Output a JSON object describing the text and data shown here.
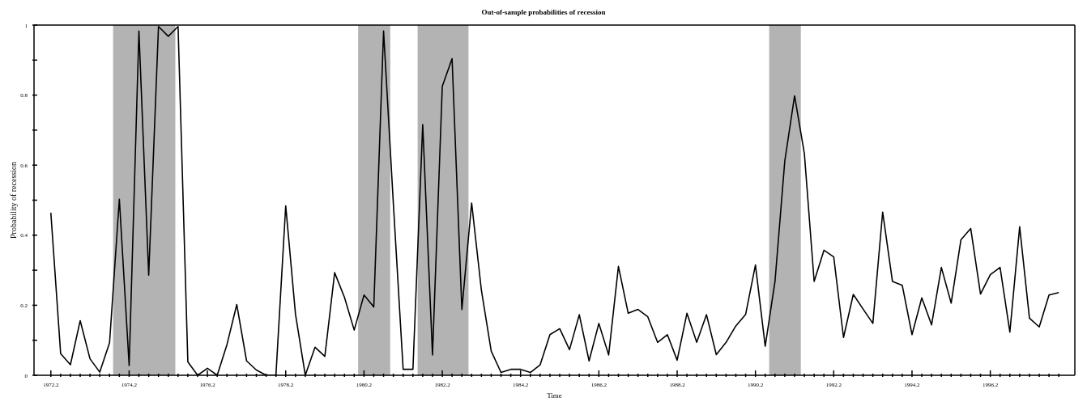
{
  "chart_data": {
    "type": "line",
    "title": "Out-of-sample probabilities of recession",
    "xlabel": "Time",
    "ylabel": "Probability of recession",
    "x": [
      1972.25,
      1972.5,
      1972.75,
      1973,
      1973.25,
      1973.5,
      1973.75,
      1974,
      1974.25,
      1974.5,
      1974.75,
      1975,
      1975.25,
      1975.5,
      1975.75,
      1976,
      1976.25,
      1976.5,
      1976.75,
      1977,
      1977.25,
      1977.5,
      1977.75,
      1978,
      1978.25,
      1978.5,
      1978.75,
      1979,
      1979.25,
      1979.5,
      1979.75,
      1980,
      1980.25,
      1980.5,
      1980.75,
      1981,
      1981.25,
      1981.5,
      1981.75,
      1982,
      1982.25,
      1982.5,
      1982.75,
      1983,
      1983.25,
      1983.5,
      1983.75,
      1984,
      1984.25,
      1984.5,
      1984.75,
      1985,
      1985.25,
      1985.5,
      1985.75,
      1986,
      1986.25,
      1986.5,
      1986.75,
      1987,
      1987.25,
      1987.5,
      1987.75,
      1988,
      1988.25,
      1988.5,
      1988.75,
      1989,
      1989.25,
      1989.5,
      1989.75,
      1990,
      1990.25,
      1990.5,
      1990.75,
      1991,
      1991.25,
      1991.5,
      1991.75,
      1992,
      1992.25,
      1992.5,
      1992.75,
      1993,
      1993.25,
      1993.5,
      1993.75,
      1994,
      1994.25,
      1994.5,
      1994.75,
      1995,
      1995.25,
      1995.5,
      1995.75,
      1996,
      1996.25,
      1996.5,
      1996.75,
      1997,
      1997.25,
      1997.5,
      1997.75,
      1998
    ],
    "values": [
      0.464,
      0.062,
      0.03,
      0.156,
      0.047,
      0.009,
      0.093,
      0.503,
      0.028,
      0.983,
      0.286,
      0.996,
      0.968,
      0.996,
      0.038,
      0,
      0.02,
      0,
      0.088,
      0.202,
      0.041,
      0.015,
      0,
      0,
      0.484,
      0.174,
      0,
      0.08,
      0.054,
      0.293,
      0.223,
      0.129,
      0.229,
      0.195,
      0.983,
      0.49,
      0.017,
      0.017,
      0.716,
      0.058,
      0.825,
      0.904,
      0.188,
      0.492,
      0.242,
      0.069,
      0.008,
      0.017,
      0.017,
      0.008,
      0.03,
      0.116,
      0.133,
      0.073,
      0.173,
      0.041,
      0.148,
      0.058,
      0.311,
      0.177,
      0.188,
      0.167,
      0.094,
      0.116,
      0.043,
      0.177,
      0.094,
      0.173,
      0.059,
      0.094,
      0.141,
      0.174,
      0.315,
      0.083,
      0.268,
      0.612,
      0.798,
      0.633,
      0.268,
      0.357,
      0.338,
      0.108,
      0.231,
      0.189,
      0.148,
      0.466,
      0.268,
      0.257,
      0.116,
      0.221,
      0.144,
      0.308,
      0.206,
      0.387,
      0.419,
      0.232,
      0.287,
      0.308,
      0.123,
      0.424,
      0.163,
      0.138,
      0.229,
      0.236
    ],
    "color": "#000000",
    "xlim": [
      1971.82,
      1998.41
    ],
    "xticks": [
      {
        "value": 1972.25,
        "label": "1972.2"
      },
      {
        "value": 1972.5,
        "label": null
      },
      {
        "value": 1972.75,
        "label": null
      },
      {
        "value": 1973,
        "label": null
      },
      {
        "value": 1973.25,
        "label": null
      },
      {
        "value": 1973.5,
        "label": null
      },
      {
        "value": 1973.75,
        "label": null
      },
      {
        "value": 1974,
        "label": null
      },
      {
        "value": 1974.25,
        "label": "1974.2"
      },
      {
        "value": 1974.5,
        "label": null
      },
      {
        "value": 1974.75,
        "label": null
      },
      {
        "value": 1975,
        "label": null
      },
      {
        "value": 1975.25,
        "label": null
      },
      {
        "value": 1975.5,
        "label": null
      },
      {
        "value": 1975.75,
        "label": null
      },
      {
        "value": 1976,
        "label": null
      },
      {
        "value": 1976.25,
        "label": "1976.2"
      },
      {
        "value": 1976.5,
        "label": null
      },
      {
        "value": 1976.75,
        "label": null
      },
      {
        "value": 1977,
        "label": null
      },
      {
        "value": 1977.25,
        "label": null
      },
      {
        "value": 1977.5,
        "label": null
      },
      {
        "value": 1977.75,
        "label": null
      },
      {
        "value": 1978,
        "label": null
      },
      {
        "value": 1978.25,
        "label": "1978.2"
      },
      {
        "value": 1978.5,
        "label": null
      },
      {
        "value": 1978.75,
        "label": null
      },
      {
        "value": 1979,
        "label": null
      },
      {
        "value": 1979.25,
        "label": null
      },
      {
        "value": 1979.5,
        "label": null
      },
      {
        "value": 1979.75,
        "label": null
      },
      {
        "value": 1980,
        "label": null
      },
      {
        "value": 1980.25,
        "label": "1980.2"
      },
      {
        "value": 1980.5,
        "label": null
      },
      {
        "value": 1980.75,
        "label": null
      },
      {
        "value": 1981,
        "label": null
      },
      {
        "value": 1981.25,
        "label": null
      },
      {
        "value": 1981.5,
        "label": null
      },
      {
        "value": 1981.75,
        "label": null
      },
      {
        "value": 1982,
        "label": null
      },
      {
        "value": 1982.25,
        "label": "1982.2"
      },
      {
        "value": 1982.5,
        "label": null
      },
      {
        "value": 1982.75,
        "label": null
      },
      {
        "value": 1983,
        "label": null
      },
      {
        "value": 1983.25,
        "label": null
      },
      {
        "value": 1983.5,
        "label": null
      },
      {
        "value": 1983.75,
        "label": null
      },
      {
        "value": 1984,
        "label": null
      },
      {
        "value": 1984.25,
        "label": "1984.2"
      },
      {
        "value": 1984.5,
        "label": null
      },
      {
        "value": 1984.75,
        "label": null
      },
      {
        "value": 1985,
        "label": null
      },
      {
        "value": 1985.25,
        "label": null
      },
      {
        "value": 1985.5,
        "label": null
      },
      {
        "value": 1985.75,
        "label": null
      },
      {
        "value": 1986,
        "label": null
      },
      {
        "value": 1986.25,
        "label": "1986.2"
      },
      {
        "value": 1986.5,
        "label": null
      },
      {
        "value": 1986.75,
        "label": null
      },
      {
        "value": 1987,
        "label": null
      },
      {
        "value": 1987.25,
        "label": null
      },
      {
        "value": 1987.5,
        "label": null
      },
      {
        "value": 1987.75,
        "label": null
      },
      {
        "value": 1988,
        "label": null
      },
      {
        "value": 1988.25,
        "label": "1988.2"
      },
      {
        "value": 1988.5,
        "label": null
      },
      {
        "value": 1988.75,
        "label": null
      },
      {
        "value": 1989,
        "label": null
      },
      {
        "value": 1989.25,
        "label": null
      },
      {
        "value": 1989.5,
        "label": null
      },
      {
        "value": 1989.75,
        "label": null
      },
      {
        "value": 1990,
        "label": null
      },
      {
        "value": 1990.25,
        "label": "1990.2"
      },
      {
        "value": 1990.5,
        "label": null
      },
      {
        "value": 1990.75,
        "label": null
      },
      {
        "value": 1991,
        "label": null
      },
      {
        "value": 1991.25,
        "label": null
      },
      {
        "value": 1991.5,
        "label": null
      },
      {
        "value": 1991.75,
        "label": null
      },
      {
        "value": 1992,
        "label": null
      },
      {
        "value": 1992.25,
        "label": "1992.2"
      },
      {
        "value": 1992.5,
        "label": null
      },
      {
        "value": 1992.75,
        "label": null
      },
      {
        "value": 1993,
        "label": null
      },
      {
        "value": 1993.25,
        "label": null
      },
      {
        "value": 1993.5,
        "label": null
      },
      {
        "value": 1993.75,
        "label": null
      },
      {
        "value": 1994,
        "label": null
      },
      {
        "value": 1994.25,
        "label": "1994.2"
      },
      {
        "value": 1994.5,
        "label": null
      },
      {
        "value": 1994.75,
        "label": null
      },
      {
        "value": 1995,
        "label": null
      },
      {
        "value": 1995.25,
        "label": null
      },
      {
        "value": 1995.5,
        "label": null
      },
      {
        "value": 1995.75,
        "label": null
      },
      {
        "value": 1996,
        "label": null
      },
      {
        "value": 1996.25,
        "label": "1996.2"
      },
      {
        "value": 1996.5,
        "label": null
      },
      {
        "value": 1996.75,
        "label": null
      },
      {
        "value": 1997,
        "label": null
      },
      {
        "value": 1997.25,
        "label": null
      },
      {
        "value": 1997.5,
        "label": null
      },
      {
        "value": 1997.75,
        "label": null
      },
      {
        "value": 1998,
        "label": null
      }
    ],
    "ylim": [
      0,
      1
    ],
    "yticks": [
      0,
      {
        "value": 0.1,
        "label": null
      },
      0.2,
      {
        "value": 0.3,
        "label": null
      },
      0.4,
      {
        "value": 0.5,
        "label": null
      },
      0.6,
      {
        "value": 0.7,
        "label": null
      },
      0.8,
      {
        "value": 0.9,
        "label": null
      },
      1
    ],
    "bands": [
      {
        "axis": "x",
        "from": 1973.84,
        "to": 1975.43,
        "color": "#b3b3b3"
      },
      {
        "axis": "x",
        "from": 1980.1,
        "to": 1980.92,
        "color": "#b3b3b3"
      },
      {
        "axis": "x",
        "from": 1981.62,
        "to": 1982.92,
        "color": "#b3b3b3"
      },
      {
        "axis": "x",
        "from": 1990.6,
        "to": 1991.41,
        "color": "#b3b3b3"
      }
    ]
  }
}
